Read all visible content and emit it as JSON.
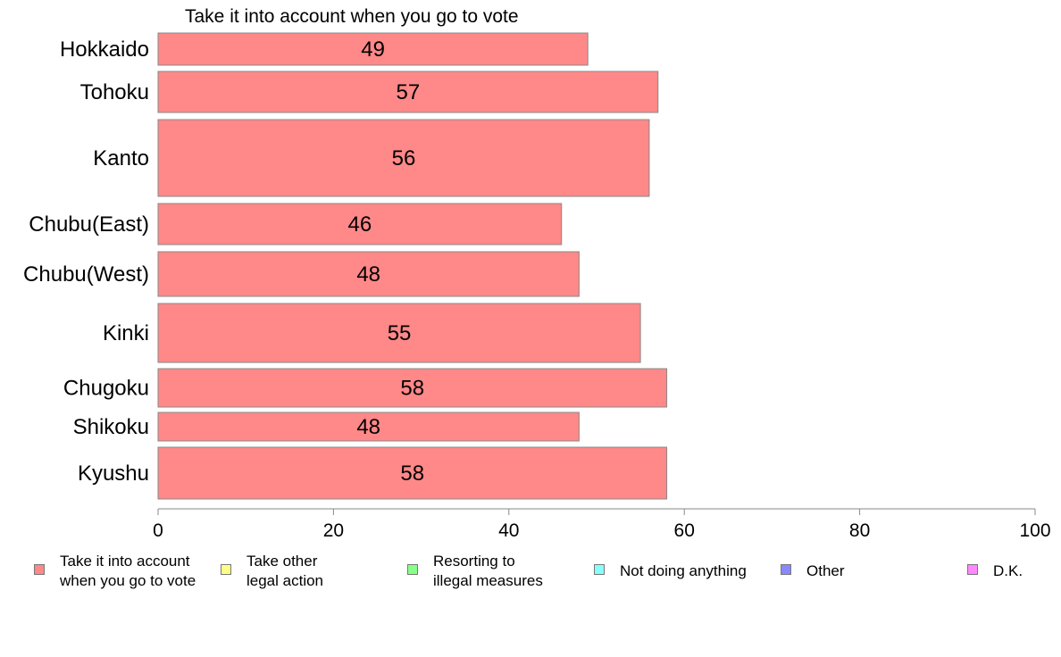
{
  "chart_data": {
    "type": "bar",
    "orientation": "horizontal",
    "stacked": true,
    "title": "Take it into account when you go to vote",
    "categories": [
      "Hokkaido",
      "Tohoku",
      "Kanto",
      "Chubu(East)",
      "Chubu(West)",
      "Kinki",
      "Chugoku",
      "Shikoku",
      "Kyushu"
    ],
    "series": [
      {
        "name": "Take it into account\nwhen you go to vote",
        "color": "#ff8888",
        "values": [
          49,
          57,
          56,
          46,
          48,
          55,
          58,
          48,
          58
        ]
      }
    ],
    "value_labels": [
      "49",
      "57",
      "56",
      "46",
      "48",
      "55",
      "58",
      "48",
      "58"
    ],
    "xlim": [
      0,
      100
    ],
    "xticks": [
      0,
      20,
      40,
      60,
      80,
      100
    ],
    "xtick_labels": [
      "0",
      "20",
      "40",
      "60",
      "80",
      "100"
    ],
    "xlabel": "",
    "ylabel": "",
    "grid": false,
    "legend": {
      "position": "bottom",
      "entries": [
        {
          "label": "Take it into account\nwhen you go to vote",
          "color": "#ff8888"
        },
        {
          "label": "Take other\nlegal action",
          "color": "#ffff88"
        },
        {
          "label": "Resorting to\nillegal measures",
          "color": "#88ff88"
        },
        {
          "label": "Not doing anything",
          "color": "#88ffff"
        },
        {
          "label": "Other",
          "color": "#8888ff"
        },
        {
          "label": "D.K.",
          "color": "#ff88ff"
        }
      ]
    }
  }
}
